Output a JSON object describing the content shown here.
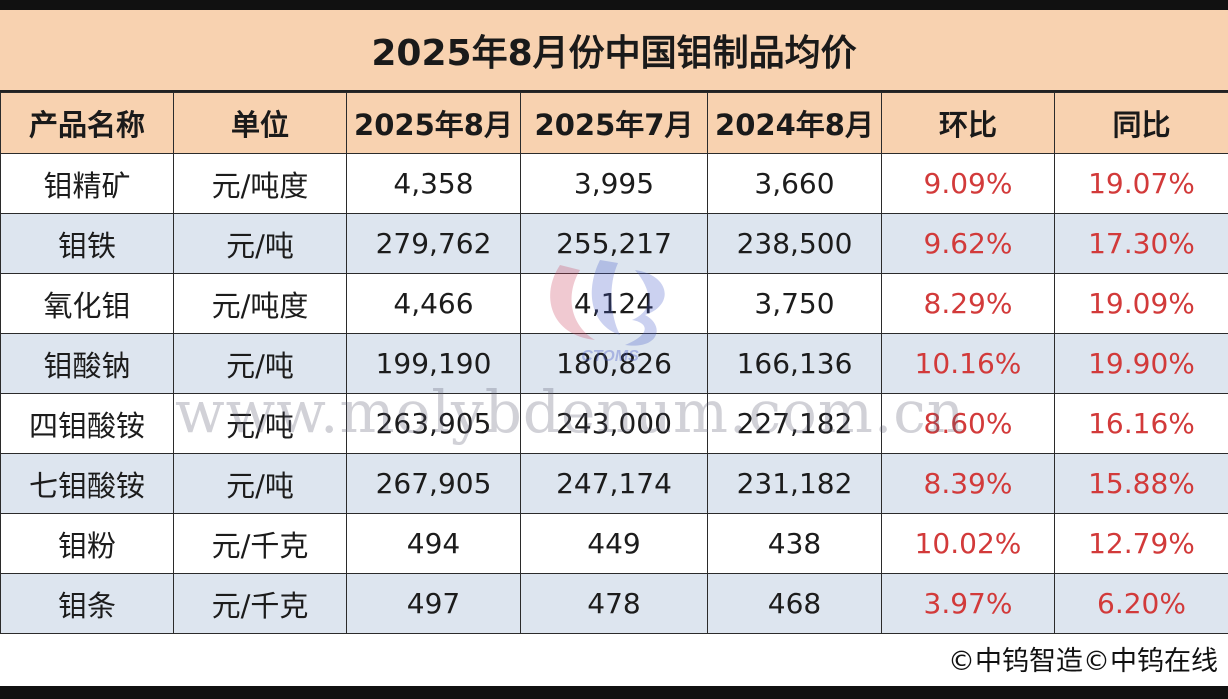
{
  "chart_data": {
    "type": "table",
    "title": "2025年8月份中国钼制品均价",
    "columns": [
      "产品名称",
      "单位",
      "2025年8月",
      "2025年7月",
      "2024年8月",
      "环比",
      "同比"
    ],
    "rows": [
      {
        "product": "钼精矿",
        "unit": "元/吨度",
        "aug2025": "4,358",
        "jul2025": "3,995",
        "aug2024": "3,660",
        "mom": "9.09%",
        "yoy": "19.07%"
      },
      {
        "product": "钼铁",
        "unit": "元/吨",
        "aug2025": "279,762",
        "jul2025": "255,217",
        "aug2024": "238,500",
        "mom": "9.62%",
        "yoy": "17.30%"
      },
      {
        "product": "氧化钼",
        "unit": "元/吨度",
        "aug2025": "4,466",
        "jul2025": "4,124",
        "aug2024": "3,750",
        "mom": "8.29%",
        "yoy": "19.09%"
      },
      {
        "product": "钼酸钠",
        "unit": "元/吨",
        "aug2025": "199,190",
        "jul2025": "180,826",
        "aug2024": "166,136",
        "mom": "10.16%",
        "yoy": "19.90%"
      },
      {
        "product": "四钼酸铵",
        "unit": "元/吨",
        "aug2025": "263,905",
        "jul2025": "243,000",
        "aug2024": "227,182",
        "mom": "8.60%",
        "yoy": "16.16%"
      },
      {
        "product": "七钼酸铵",
        "unit": "元/吨",
        "aug2025": "267,905",
        "jul2025": "247,174",
        "aug2024": "231,182",
        "mom": "8.39%",
        "yoy": "15.88%"
      },
      {
        "product": "钼粉",
        "unit": "元/千克",
        "aug2025": "494",
        "jul2025": "449",
        "aug2024": "438",
        "mom": "10.02%",
        "yoy": "12.79%"
      },
      {
        "product": "钼条",
        "unit": "元/千克",
        "aug2025": "497",
        "jul2025": "478",
        "aug2024": "468",
        "mom": "3.97%",
        "yoy": "6.20%"
      }
    ]
  },
  "watermark": {
    "text": "www.molybdenum.com.cn",
    "logo_text": "CTOMS"
  },
  "footer": {
    "text": "©中钨智造©中钨在线"
  },
  "colors": {
    "header_bg": "#f8d2b0",
    "stripe_bg": "#dde5ef",
    "percent_text": "#d23a3a"
  }
}
